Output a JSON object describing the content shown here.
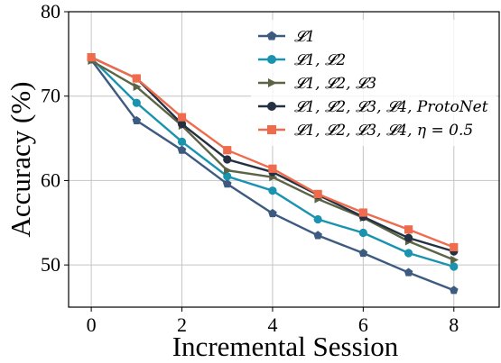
{
  "chart_data": {
    "type": "line",
    "xlabel": "Incremental Session",
    "ylabel": "Accuracy (%)",
    "xlim": [
      -0.5,
      9.0
    ],
    "ylim": [
      45,
      80
    ],
    "xticks": [
      0,
      2,
      4,
      6,
      8
    ],
    "yticks": [
      50,
      60,
      70,
      80
    ],
    "xtick_labels": [
      "0",
      "2",
      "4",
      "6",
      "8"
    ],
    "ytick_labels": [
      "50",
      "60",
      "70",
      "80"
    ],
    "grid": true,
    "legend_position": "top-right",
    "x": [
      0,
      1,
      2,
      3,
      4,
      5,
      6,
      7,
      8
    ],
    "series": [
      {
        "name": "𝓛1",
        "color": "#3d5a80",
        "marker": "pentagon",
        "values": [
          74.3,
          67.1,
          63.6,
          59.6,
          56.1,
          53.5,
          51.4,
          49.1,
          47.0
        ]
      },
      {
        "name": "𝓛1, 𝓛2",
        "color": "#1a93b0",
        "marker": "circle",
        "values": [
          74.5,
          69.2,
          64.6,
          60.5,
          58.8,
          55.4,
          53.8,
          51.4,
          49.8
        ]
      },
      {
        "name": "𝓛1, 𝓛2, 𝓛3",
        "color": "#5b6445",
        "marker": "triangle-right",
        "values": [
          74.2,
          71.1,
          66.5,
          61.2,
          60.4,
          57.8,
          55.6,
          52.8,
          50.6
        ]
      },
      {
        "name": "𝓛1, 𝓛2, 𝓛3, 𝓛4, ProtoNet",
        "color": "#253142",
        "marker": "circle",
        "values": [
          74.6,
          72.1,
          66.7,
          62.5,
          61.0,
          58.3,
          55.7,
          53.2,
          51.6
        ]
      },
      {
        "name": "𝓛1, 𝓛2, 𝓛3, 𝓛4, η = 0.5",
        "color": "#ee6c4d",
        "marker": "square",
        "values": [
          74.6,
          72.1,
          67.5,
          63.6,
          61.4,
          58.4,
          56.2,
          54.2,
          52.1
        ]
      }
    ]
  }
}
